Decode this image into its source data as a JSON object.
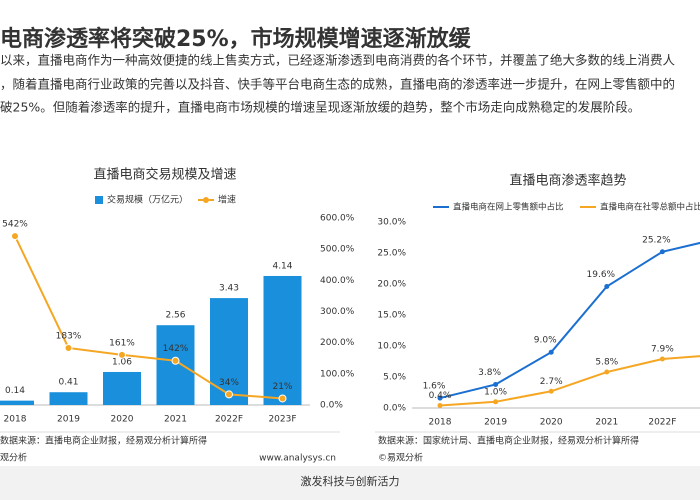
{
  "header": {
    "title": "电商渗透率将突破25%，市场规模增速逐渐放缓"
  },
  "paragraph": [
    "以来，直播电商作为一种高效便捷的线上售卖方式，已经逐渐渗透到电商消费的各个环节，并覆盖了绝大多数的线上消费人",
    "，随着直播电商行业政策的完善以及抖音、快手等平台电商生态的成熟，直播电商的渗透率进一步提升，在网上零售额中的",
    "破25%。但随着渗透率的提升，直播电商市场规模的增速呈现逐渐放缓的趋势，整个市场走向成熟稳定的发展阶段。"
  ],
  "chart_data": [
    {
      "type": "bar",
      "title": "直播电商交易规模及增速",
      "categories": [
        "2018",
        "2019",
        "2020",
        "2021",
        "2022F",
        "2023F"
      ],
      "series": [
        {
          "name": "交易规模（万亿元）",
          "color": "#1a8fdb",
          "values": [
            0.14,
            0.41,
            1.06,
            2.56,
            3.43,
            4.14
          ]
        },
        {
          "name": "增速",
          "type": "line",
          "axis": "y2",
          "color": "#f5a623",
          "values": [
            542,
            183,
            161,
            142,
            34,
            21
          ],
          "value_labels": [
            "542%",
            "183%",
            "161%",
            "142%",
            "34%",
            "21%"
          ]
        }
      ],
      "ylim": [
        0,
        6
      ],
      "y2lim": [
        0,
        600
      ],
      "y2ticks": [
        {
          "value": 0,
          "label": "0.0%"
        },
        {
          "value": 100,
          "label": "100.0%"
        },
        {
          "value": 200,
          "label": "200.0%"
        },
        {
          "value": 300,
          "label": "300.0%"
        },
        {
          "value": 400,
          "label": "400.0%"
        },
        {
          "value": 500,
          "label": "500.0%"
        },
        {
          "value": 600,
          "label": "600.0%"
        }
      ],
      "source": "数据来源：直播电商企业财报，经易观分析计算所得",
      "brand": "观分析",
      "url": "www.analysys.cn"
    },
    {
      "type": "line",
      "title": "直播电商渗透率趋势",
      "categories": [
        "2018",
        "2019",
        "2020",
        "2021",
        "2022F",
        null
      ],
      "series": [
        {
          "name": "直播电商在网上零售额中占比",
          "color": "#1a6fd1",
          "values": [
            1.6,
            3.8,
            9.0,
            19.6,
            25.2,
            27.3
          ],
          "value_labels": [
            "1.6%",
            "3.8%",
            "9.0%",
            "19.6%",
            "25.2%",
            null
          ]
        },
        {
          "name": "直播电商在社零总额中占比",
          "color": "#f5a623",
          "values": [
            0.4,
            1.0,
            2.7,
            5.8,
            7.9,
            8.6
          ],
          "value_labels": [
            "0.4%",
            "1.0%",
            "2.7%",
            "5.8%",
            "7.9%",
            null
          ]
        }
      ],
      "ylim": [
        0,
        30
      ],
      "yticks": [
        {
          "value": 0,
          "label": "0.0%"
        },
        {
          "value": 5,
          "label": "5.0%"
        },
        {
          "value": 10,
          "label": "10.0%"
        },
        {
          "value": 15,
          "label": "15.0%"
        },
        {
          "value": 20,
          "label": "20.0%"
        },
        {
          "value": 25,
          "label": "25.0%"
        },
        {
          "value": 30,
          "label": "30.0%"
        }
      ],
      "source": "数据来源：国家统计局、直播电商企业财报，经易观分析计算所得",
      "brand": "©易观分析"
    }
  ],
  "footer": "激发科技与创新活力"
}
